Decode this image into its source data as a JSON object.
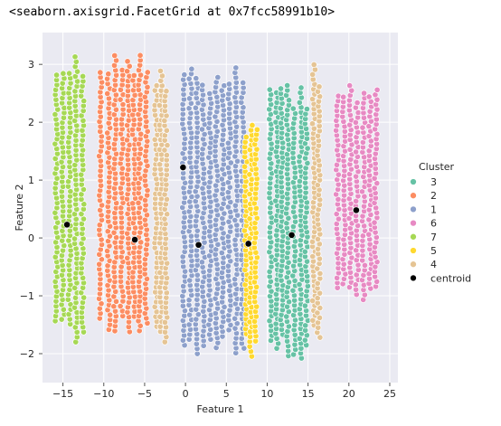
{
  "output_text": "<seaborn.axisgrid.FacetGrid at 0x7fcc58991b10>",
  "chart_data": {
    "type": "scatter",
    "xlabel": "Feature 1",
    "ylabel": "Feature 2",
    "xlim": [
      -17.5,
      26
    ],
    "ylim": [
      -2.5,
      3.55
    ],
    "x_ticks": [
      -15,
      -10,
      -5,
      0,
      5,
      10,
      15,
      20,
      25
    ],
    "y_ticks": [
      -2,
      -1,
      0,
      1,
      2,
      3
    ],
    "grid": true,
    "background": "#eaeaf2",
    "legend": {
      "title": "Cluster",
      "placement": "right",
      "entries": [
        {
          "label": "3",
          "color": "#66c2a5"
        },
        {
          "label": "2",
          "color": "#fc8d62"
        },
        {
          "label": "1",
          "color": "#8da0cb"
        },
        {
          "label": "6",
          "color": "#e78ac3"
        },
        {
          "label": "7",
          "color": "#a6d854"
        },
        {
          "label": "5",
          "color": "#ffd92f"
        },
        {
          "label": "4",
          "color": "#e5c494"
        },
        {
          "label": "centroid",
          "color": "#000000"
        }
      ]
    },
    "series": [
      {
        "name": "3",
        "color": "#66c2a5",
        "x_columns": [
          10.4,
          11.2,
          11.8,
          12.5,
          13.3,
          14.1,
          14.8
        ],
        "y_range": [
          -2.1,
          2.75
        ]
      },
      {
        "name": "2",
        "color": "#fc8d62",
        "x_columns": [
          -10.4,
          -9.4,
          -8.6,
          -7.8,
          -7.0,
          -6.3,
          -5.6,
          -4.8
        ],
        "y_range": [
          -1.8,
          3.25
        ]
      },
      {
        "name": "1",
        "color": "#8da0cb",
        "x_columns": [
          -0.2,
          0.6,
          1.4,
          2.2,
          3.0,
          3.8,
          4.6,
          5.4,
          6.2,
          7.0
        ],
        "y_range": [
          -2.05,
          3.05
        ]
      },
      {
        "name": "6",
        "color": "#e78ac3",
        "x_columns": [
          18.6,
          19.4,
          20.2,
          21.0,
          21.8,
          22.6,
          23.3
        ],
        "y_range": [
          -1.2,
          2.85
        ]
      },
      {
        "name": "7",
        "color": "#a6d854",
        "x_columns": [
          -15.8,
          -15.0,
          -14.2,
          -13.4,
          -12.6
        ],
        "y_range": [
          -1.85,
          3.35
        ]
      },
      {
        "name": "5",
        "color": "#ffd92f",
        "x_columns": [
          7.4,
          8.0,
          8.6
        ],
        "y_range": [
          -2.1,
          2.25
        ]
      },
      {
        "name": "4",
        "color": "#e5c494",
        "x_columns": [
          -3.6,
          -3.0,
          -2.4,
          15.7,
          16.3
        ],
        "y_range": [
          -1.9,
          3.05
        ]
      }
    ],
    "centroids": [
      {
        "cluster": "7",
        "x": -14.5,
        "y": 0.23
      },
      {
        "cluster": "2",
        "x": -6.2,
        "y": -0.03
      },
      {
        "cluster": "4",
        "x": -0.3,
        "y": 1.22
      },
      {
        "cluster": "1",
        "x": 1.6,
        "y": -0.12
      },
      {
        "cluster": "5",
        "x": 7.7,
        "y": -0.1
      },
      {
        "cluster": "3",
        "x": 13.0,
        "y": 0.05
      },
      {
        "cluster": "6",
        "x": 20.9,
        "y": 0.48
      }
    ]
  }
}
